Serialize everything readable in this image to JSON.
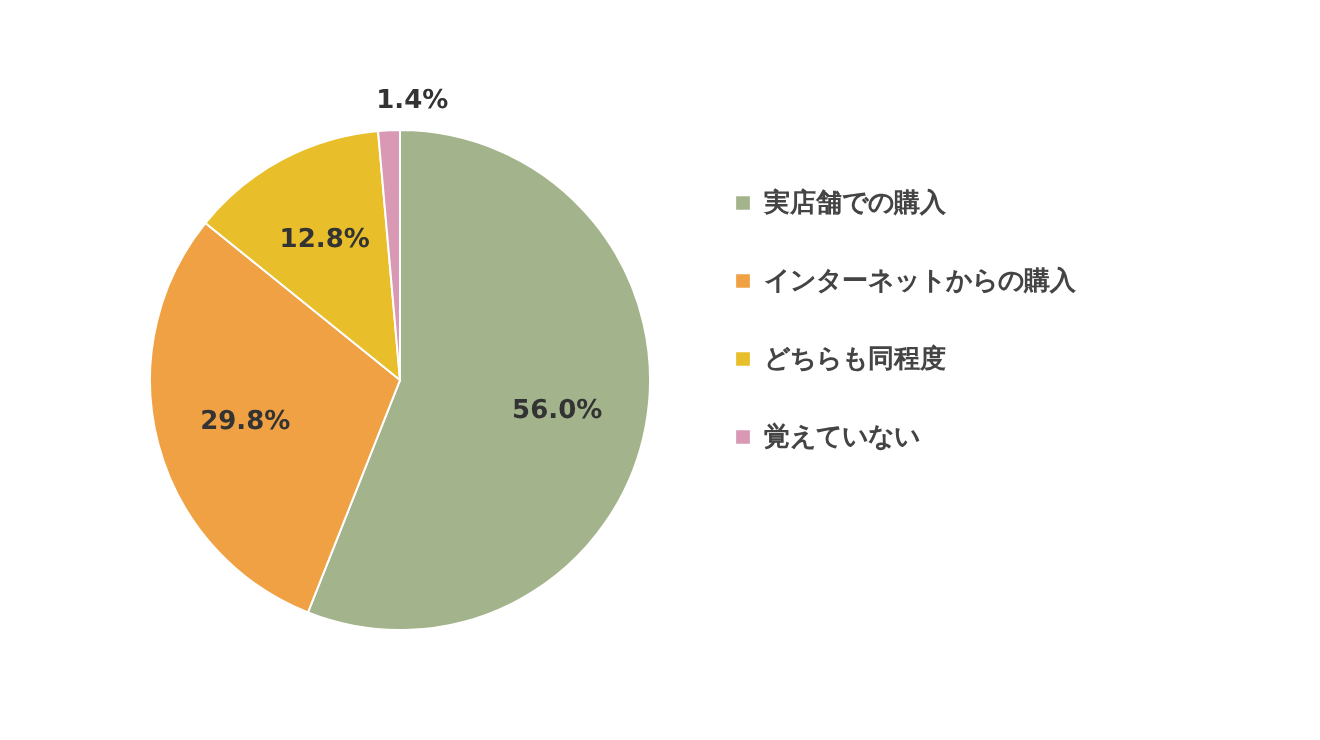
{
  "chart_data": {
    "type": "pie",
    "categories": [
      "実店舗での購入",
      "インターネットからの購入",
      "どちらも同程度",
      "覚えていない"
    ],
    "values": [
      56.0,
      29.8,
      12.8,
      1.4
    ],
    "colors": [
      "#a3b48c",
      "#f0a143",
      "#e8bf2a",
      "#d998b4"
    ],
    "data_labels": true,
    "value_labels": [
      "56.0%",
      "29.8%",
      "12.8%",
      "1.4%"
    ],
    "legend": "right"
  }
}
